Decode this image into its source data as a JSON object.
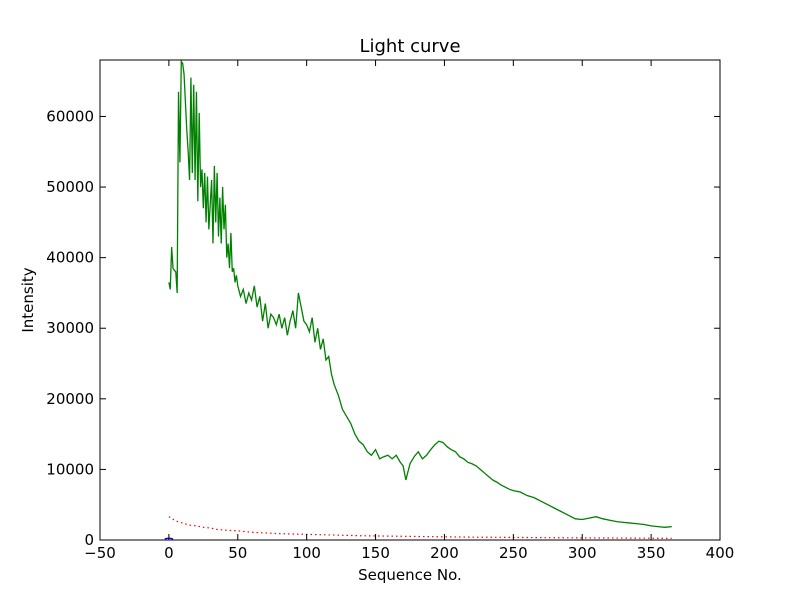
{
  "chart_data": {
    "type": "line",
    "title": "Light curve",
    "xlabel": "Sequence No.",
    "ylabel": "Intensity",
    "xlim": [
      -50,
      400
    ],
    "ylim": [
      0,
      68000
    ],
    "xticks": [
      -50,
      0,
      50,
      100,
      150,
      200,
      250,
      300,
      350,
      400
    ],
    "yticks": [
      0,
      10000,
      20000,
      30000,
      40000,
      50000,
      60000
    ],
    "grid": false,
    "legend": "none",
    "series": [
      {
        "color": "#008000",
        "style": "solid",
        "x": [
          0,
          1,
          2,
          3,
          4,
          5,
          6,
          7,
          8,
          9,
          10,
          11,
          12,
          13,
          14,
          15,
          16,
          17,
          18,
          19,
          20,
          21,
          22,
          23,
          24,
          25,
          26,
          27,
          28,
          29,
          30,
          31,
          32,
          33,
          34,
          35,
          36,
          37,
          38,
          39,
          40,
          41,
          42,
          43,
          44,
          45,
          46,
          47,
          48,
          49,
          50,
          52,
          54,
          56,
          58,
          60,
          62,
          64,
          66,
          68,
          70,
          72,
          74,
          76,
          78,
          80,
          82,
          84,
          86,
          88,
          90,
          92,
          94,
          96,
          98,
          100,
          102,
          104,
          106,
          108,
          110,
          112,
          114,
          116,
          118,
          120,
          123,
          126,
          129,
          132,
          135,
          138,
          141,
          144,
          147,
          150,
          153,
          156,
          159,
          162,
          165,
          168,
          170,
          172,
          175,
          178,
          181,
          184,
          187,
          190,
          193,
          196,
          199,
          202,
          205,
          208,
          211,
          214,
          217,
          220,
          223,
          226,
          229,
          232,
          235,
          238,
          241,
          244,
          247,
          250,
          255,
          260,
          265,
          270,
          275,
          280,
          285,
          290,
          295,
          300,
          305,
          310,
          315,
          320,
          325,
          330,
          335,
          340,
          345,
          350,
          355,
          360,
          365
        ],
        "y": [
          36500,
          35500,
          41500,
          38500,
          38200,
          38000,
          35000,
          63500,
          53500,
          67800,
          67500,
          66000,
          62000,
          58000,
          55000,
          51000,
          65500,
          52000,
          64500,
          51000,
          63500,
          48000,
          60500,
          50000,
          52500,
          47000,
          52000,
          45000,
          51500,
          44000,
          47500,
          51000,
          42000,
          53000,
          45000,
          52000,
          43000,
          48500,
          42000,
          50000,
          44000,
          47500,
          40000,
          42000,
          38500,
          43500,
          38000,
          38500,
          36500,
          37500,
          36000,
          34500,
          35500,
          33500,
          35000,
          34000,
          36000,
          33000,
          34500,
          31000,
          33500,
          30000,
          32000,
          31500,
          30500,
          32000,
          30000,
          31500,
          29000,
          31000,
          32500,
          30000,
          35000,
          33000,
          31000,
          30500,
          29500,
          31500,
          28000,
          30000,
          27000,
          28500,
          25500,
          26000,
          23500,
          22000,
          20500,
          18500,
          17500,
          16500,
          15000,
          14000,
          13500,
          12500,
          12000,
          12800,
          11500,
          11800,
          12000,
          11500,
          12000,
          11000,
          10500,
          8500,
          10800,
          11800,
          12500,
          11500,
          12000,
          12800,
          13500,
          14000,
          13800,
          13200,
          12800,
          12500,
          11800,
          11500,
          11000,
          10800,
          10500,
          10000,
          9500,
          9000,
          8500,
          8200,
          7800,
          7500,
          7200,
          7000,
          6800,
          6300,
          6000,
          5500,
          5000,
          4500,
          4000,
          3500,
          3000,
          2900,
          3100,
          3300,
          3000,
          2800,
          2600,
          2500,
          2400,
          2300,
          2200,
          2000,
          1900,
          1800,
          1900
        ]
      },
      {
        "color": "#ff0000",
        "style": "dotted",
        "x": [
          0,
          5,
          10,
          15,
          20,
          25,
          30,
          35,
          40,
          45,
          50,
          55,
          60,
          70,
          80,
          90,
          100,
          120,
          140,
          160,
          180,
          200,
          220,
          240,
          260,
          280,
          300,
          320,
          340,
          365
        ],
        "y": [
          3300,
          2700,
          2400,
          2100,
          2000,
          1800,
          1700,
          1500,
          1400,
          1350,
          1300,
          1200,
          1100,
          1000,
          900,
          850,
          800,
          700,
          600,
          550,
          500,
          450,
          400,
          380,
          350,
          320,
          300,
          280,
          260,
          240
        ]
      },
      {
        "color": "#0000ff",
        "style": "solid",
        "x": [
          -3,
          -1,
          1,
          3
        ],
        "y": [
          150,
          250,
          250,
          150
        ]
      }
    ]
  }
}
